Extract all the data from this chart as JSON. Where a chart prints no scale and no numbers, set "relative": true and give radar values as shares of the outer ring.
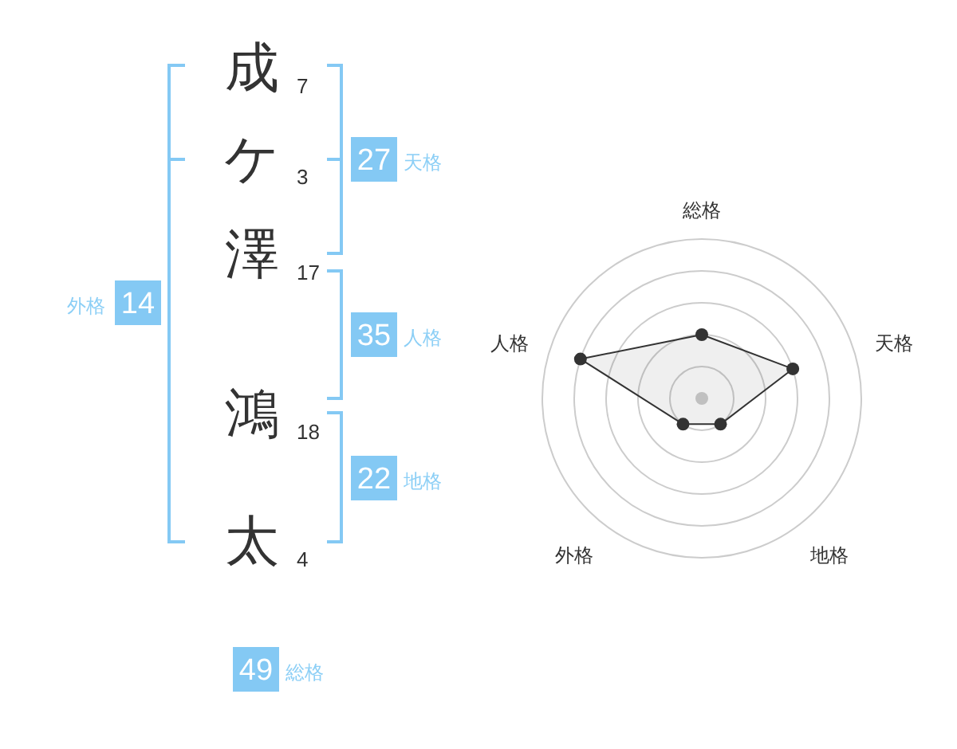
{
  "chart_data": [
    {
      "type": "other",
      "categories": [
        "成",
        "ケ",
        "澤",
        "鴻",
        "太"
      ],
      "values": [
        7,
        3,
        17,
        18,
        4
      ],
      "data_labels": true,
      "annotations": [
        "27",
        "天格",
        "35",
        "人格",
        "22",
        "地格",
        "14",
        "外格",
        "49",
        "総格"
      ]
    },
    {
      "type": "radar",
      "categories": [
        "総格",
        "天格",
        "地格",
        "外格",
        "人格"
      ],
      "relative": true,
      "series": [
        {
          "color": "#333333",
          "values": [
            0.4,
            0.6,
            0.2,
            0.2,
            0.8
          ]
        }
      ],
      "grid": true,
      "marker": "circle"
    }
  ]
}
